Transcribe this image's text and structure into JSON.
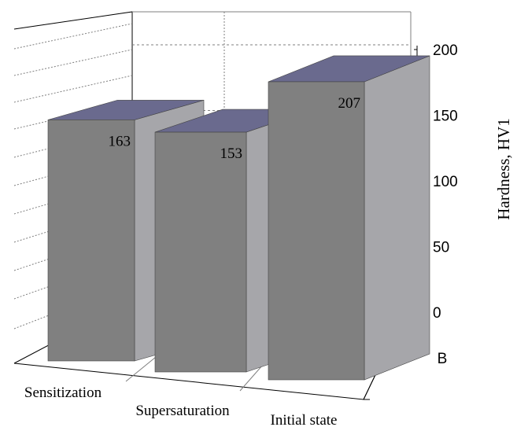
{
  "chart_data": {
    "type": "bar",
    "style": "3d-column",
    "categories": [
      "Sensitization",
      "Supersaturation",
      "Initial state"
    ],
    "series": [
      {
        "name": "B",
        "values": [
          163,
          153,
          207
        ]
      }
    ],
    "data_labels": [
      "163",
      "153",
      "207"
    ],
    "ylabel": "Hardness, HV1",
    "yticks": [
      "0",
      "50",
      "100",
      "150",
      "200"
    ],
    "ylim": [
      0,
      220
    ],
    "grid": true,
    "axis_position": "right",
    "colors": {
      "bar_front": "#808080",
      "bar_side": "#a6a6aa",
      "bar_top": "#6a6a8e",
      "gridline": "#7f7f7f"
    }
  }
}
